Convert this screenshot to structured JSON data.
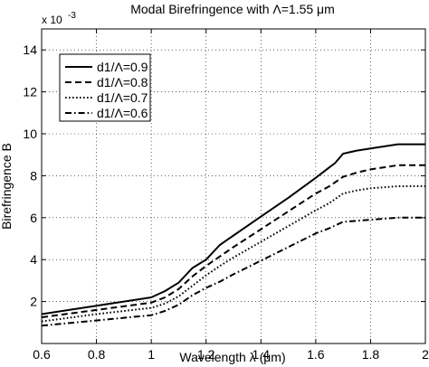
{
  "chart_data": {
    "type": "line",
    "title": "Modal Birefringence with Λ=1.55 μm",
    "xlabel": "Wavelength λ (μm)",
    "ylabel": "Birefringence B",
    "y_multiplier_label": "x 10",
    "y_multiplier_exponent": "-3",
    "xlim": [
      0.6,
      2.0
    ],
    "ylim": [
      0,
      15
    ],
    "xticks": [
      0.6,
      0.8,
      1.0,
      1.2,
      1.4,
      1.6,
      1.8,
      2.0
    ],
    "xtick_labels": [
      "0.6",
      "0.8",
      "1",
      "1.2",
      "1.4",
      "1.6",
      "1.8",
      "2"
    ],
    "yticks": [
      2,
      4,
      6,
      8,
      10,
      12,
      14
    ],
    "ytick_labels": [
      "2",
      "4",
      "6",
      "8",
      "10",
      "12",
      "14"
    ],
    "grid": true,
    "grid_style": "dotted",
    "legend_position": "top-left",
    "series": [
      {
        "name": "d1/Λ=0.9",
        "dash": "solid",
        "x": [
          0.6,
          0.8,
          1.0,
          1.05,
          1.1,
          1.15,
          1.2,
          1.25,
          1.3,
          1.4,
          1.5,
          1.6,
          1.65,
          1.67,
          1.7,
          1.75,
          1.8,
          1.9,
          2.0
        ],
        "y": [
          1.4,
          1.8,
          2.2,
          2.5,
          2.9,
          3.6,
          4.0,
          4.7,
          5.15,
          6.05,
          6.95,
          7.9,
          8.4,
          8.6,
          9.05,
          9.2,
          9.3,
          9.5,
          9.5
        ]
      },
      {
        "name": "d1/Λ=0.8",
        "dash": "dashed",
        "x": [
          0.6,
          0.8,
          1.0,
          1.05,
          1.1,
          1.15,
          1.2,
          1.25,
          1.3,
          1.4,
          1.5,
          1.6,
          1.65,
          1.7,
          1.75,
          1.8,
          1.9,
          2.0
        ],
        "y": [
          1.25,
          1.6,
          1.95,
          2.2,
          2.6,
          3.2,
          3.7,
          4.15,
          4.6,
          5.45,
          6.3,
          7.15,
          7.5,
          7.95,
          8.15,
          8.3,
          8.5,
          8.5
        ]
      },
      {
        "name": "d1/Λ=0.7",
        "dash": "dotted",
        "x": [
          0.6,
          0.8,
          1.0,
          1.05,
          1.1,
          1.15,
          1.2,
          1.25,
          1.3,
          1.4,
          1.5,
          1.6,
          1.65,
          1.7,
          1.75,
          1.8,
          1.9,
          2.0
        ],
        "y": [
          1.05,
          1.4,
          1.7,
          1.9,
          2.25,
          2.75,
          3.25,
          3.7,
          4.1,
          4.85,
          5.6,
          6.35,
          6.7,
          7.15,
          7.3,
          7.4,
          7.5,
          7.5
        ]
      },
      {
        "name": "d1/Λ=0.6",
        "dash": "dashdot",
        "x": [
          0.6,
          0.8,
          1.0,
          1.05,
          1.1,
          1.15,
          1.2,
          1.25,
          1.3,
          1.4,
          1.5,
          1.6,
          1.65,
          1.7,
          1.75,
          1.8,
          1.9,
          2.0
        ],
        "y": [
          0.85,
          1.1,
          1.35,
          1.55,
          1.85,
          2.3,
          2.65,
          2.95,
          3.3,
          3.95,
          4.6,
          5.25,
          5.5,
          5.8,
          5.85,
          5.9,
          6.0,
          6.0
        ]
      }
    ]
  }
}
